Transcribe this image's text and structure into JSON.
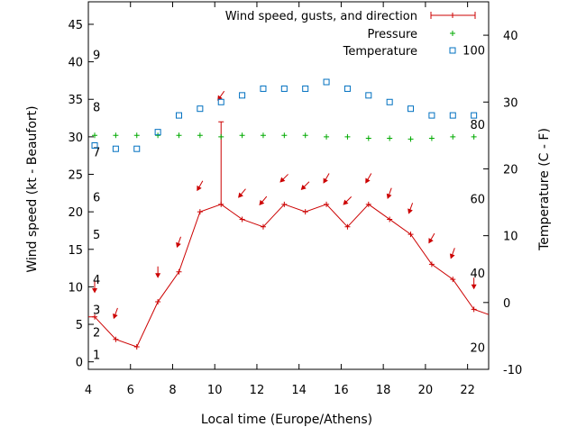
{
  "chart_data": {
    "type": "line",
    "xlabel": "Local time (Europe/Athens)",
    "ylabel": "Wind speed (kt - Beaufort)",
    "y2label": "Temperature (C - F)",
    "xlim": [
      4,
      23
    ],
    "ylim": [
      -1,
      48
    ],
    "y2lim": [
      -10,
      45
    ],
    "xticks": [
      "4",
      "6",
      "8",
      "10",
      "12",
      "14",
      "16",
      "18",
      "20",
      "22"
    ],
    "yticks": [
      "0",
      "5",
      "10",
      "15",
      "20",
      "25",
      "30",
      "35",
      "40",
      "45"
    ],
    "y2ticks": [
      "-10",
      "0",
      "10",
      "20",
      "30",
      "40"
    ],
    "beaufort_labels": [
      "1",
      "2",
      "3",
      "4",
      "5",
      "6",
      "7",
      "8",
      "9"
    ],
    "beaufort_knots": [
      1,
      4,
      7,
      11,
      17,
      22,
      28,
      34,
      41
    ],
    "fahrenheit_labels": [
      "20",
      "40",
      "60",
      "80",
      "100"
    ],
    "fahrenheit_values": [
      20,
      40,
      60,
      80,
      100
    ],
    "legend": {
      "placement": "top-right",
      "wind": "Wind speed, gusts, and direction",
      "pressure": "Pressure",
      "temperature": "Temperature"
    },
    "colors": {
      "wind": "#cc0000",
      "pressure": "#00aa00",
      "temperature": "#0070c0"
    },
    "series": [
      {
        "name": "Wind speed, gusts, and direction",
        "x": [
          4,
          4.3,
          5.3,
          6.3,
          7.3,
          8.3,
          9.3,
          10.3,
          11.3,
          12.3,
          13.3,
          14.3,
          15.3,
          16.3,
          17.3,
          18.3,
          19.3,
          20.3,
          21.3,
          22.3,
          23
        ],
        "y": [
          6,
          6,
          3,
          2,
          8,
          12,
          20,
          21,
          19,
          18,
          21,
          20,
          21,
          18,
          21,
          19,
          17,
          13,
          11,
          7,
          6.3
        ],
        "gust": [
          null,
          null,
          null,
          null,
          null,
          null,
          null,
          32,
          null,
          null,
          null,
          null,
          null,
          null,
          null,
          null,
          null,
          null,
          null,
          null,
          null
        ]
      },
      {
        "name": "Pressure",
        "x": [
          4.3,
          5.3,
          6.3,
          7.3,
          8.3,
          9.3,
          10.3,
          11.3,
          12.3,
          13.3,
          14.3,
          15.3,
          16.3,
          17.3,
          18.3,
          19.3,
          20.3,
          21.3,
          22.3
        ],
        "y": [
          30.2,
          30.2,
          30.2,
          30.2,
          30.2,
          30.2,
          30.0,
          30.2,
          30.2,
          30.2,
          30.2,
          30.0,
          30.0,
          29.8,
          29.8,
          29.7,
          29.8,
          30.0,
          30.0
        ]
      },
      {
        "name": "Temperature",
        "x": [
          4.3,
          5.3,
          6.3,
          7.3,
          8.3,
          9.3,
          10.3,
          11.3,
          12.3,
          13.3,
          14.3,
          15.3,
          16.3,
          17.3,
          18.3,
          19.3,
          20.3,
          21.3,
          22.3
        ],
        "y": [
          23.5,
          23,
          23,
          25.5,
          28,
          29,
          30,
          31,
          32,
          32,
          32,
          33,
          32,
          31,
          30,
          29,
          28,
          28,
          28
        ]
      }
    ],
    "wind_arrows": {
      "x": [
        4.3,
        5.3,
        7.3,
        8.3,
        9.3,
        10.3,
        11.3,
        12.3,
        13.3,
        14.3,
        15.3,
        16.3,
        17.3,
        18.3,
        19.3,
        20.3,
        21.3,
        22.3
      ],
      "y": [
        10,
        6.5,
        12,
        16,
        23.5,
        35.5,
        22.5,
        21.5,
        24.5,
        23.5,
        24.5,
        21.5,
        24.5,
        22.5,
        20.5,
        16.5,
        14.5,
        10.5
      ],
      "direction_deg": [
        0,
        20,
        0,
        20,
        30,
        35,
        40,
        40,
        45,
        45,
        30,
        45,
        30,
        20,
        20,
        30,
        20,
        0
      ]
    }
  }
}
